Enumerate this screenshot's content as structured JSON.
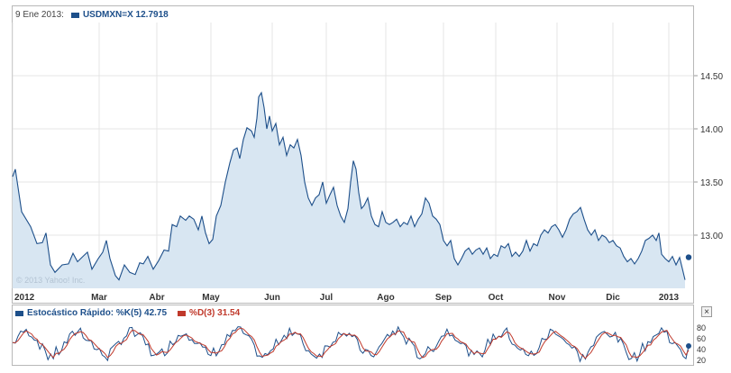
{
  "header": {
    "date_label": "9 Ene 2013:",
    "series_label": "USDMXN=X 12.7918",
    "series_color": "#1d4f8a"
  },
  "watermark": "© 2013 Yahoo! Inc.",
  "indicator": {
    "k_label": "Estocástico Rápido: %K(5) 42.75",
    "d_label": "%D(3) 31.54",
    "k_color": "#1d4f8a",
    "d_color": "#c0392b",
    "close_symbol": "×"
  },
  "chart_data": [
    {
      "type": "area",
      "series": [
        {
          "name": "USDMXN=X",
          "anchors": [
            [
              0,
              13.55
            ],
            [
              3,
              13.62
            ],
            [
              10,
              13.22
            ],
            [
              20,
              13.08
            ],
            [
              27,
              12.92
            ],
            [
              33,
              12.93
            ],
            [
              37,
              13.02
            ],
            [
              42,
              12.72
            ],
            [
              47,
              12.65
            ],
            [
              55,
              12.72
            ],
            [
              62,
              12.73
            ],
            [
              67,
              12.83
            ],
            [
              72,
              12.75
            ],
            [
              78,
              12.8
            ],
            [
              83,
              12.84
            ],
            [
              88,
              12.68
            ],
            [
              95,
              12.78
            ],
            [
              100,
              12.84
            ],
            [
              104,
              12.95
            ],
            [
              108,
              12.78
            ],
            [
              114,
              12.62
            ],
            [
              118,
              12.58
            ],
            [
              124,
              12.72
            ],
            [
              130,
              12.65
            ],
            [
              136,
              12.63
            ],
            [
              141,
              12.74
            ],
            [
              145,
              12.73
            ],
            [
              150,
              12.8
            ],
            [
              156,
              12.68
            ],
            [
              162,
              12.76
            ],
            [
              168,
              12.86
            ],
            [
              173,
              12.85
            ],
            [
              177,
              13.1
            ],
            [
              182,
              13.08
            ],
            [
              186,
              13.18
            ],
            [
              192,
              13.14
            ],
            [
              196,
              13.18
            ],
            [
              201,
              13.15
            ],
            [
              206,
              13.05
            ],
            [
              210,
              13.18
            ],
            [
              214,
              13.02
            ],
            [
              218,
              12.92
            ],
            [
              222,
              12.96
            ],
            [
              226,
              13.18
            ],
            [
              231,
              13.28
            ],
            [
              236,
              13.5
            ],
            [
              241,
              13.68
            ],
            [
              245,
              13.8
            ],
            [
              249,
              13.82
            ],
            [
              252,
              13.72
            ],
            [
              256,
              13.9
            ],
            [
              260,
              14.01
            ],
            [
              265,
              13.98
            ],
            [
              268,
              13.92
            ],
            [
              271,
              14.1
            ],
            [
              273,
              14.3
            ],
            [
              276,
              14.34
            ],
            [
              279,
              14.2
            ],
            [
              282,
              14.0
            ],
            [
              285,
              14.12
            ],
            [
              288,
              13.98
            ],
            [
              292,
              14.05
            ],
            [
              296,
              13.85
            ],
            [
              300,
              13.92
            ],
            [
              304,
              13.75
            ],
            [
              308,
              13.85
            ],
            [
              312,
              13.82
            ],
            [
              316,
              13.9
            ],
            [
              320,
              13.75
            ],
            [
              324,
              13.5
            ],
            [
              328,
              13.35
            ],
            [
              332,
              13.28
            ],
            [
              336,
              13.35
            ],
            [
              340,
              13.38
            ],
            [
              344,
              13.5
            ],
            [
              348,
              13.3
            ],
            [
              352,
              13.38
            ],
            [
              356,
              13.45
            ],
            [
              360,
              13.28
            ],
            [
              364,
              13.18
            ],
            [
              368,
              13.12
            ],
            [
              372,
              13.25
            ],
            [
              375,
              13.5
            ],
            [
              378,
              13.7
            ],
            [
              381,
              13.62
            ],
            [
              384,
              13.4
            ],
            [
              387,
              13.25
            ],
            [
              390,
              13.28
            ],
            [
              394,
              13.35
            ],
            [
              398,
              13.18
            ],
            [
              402,
              13.1
            ],
            [
              406,
              13.08
            ],
            [
              410,
              13.22
            ],
            [
              414,
              13.12
            ],
            [
              418,
              13.1
            ],
            [
              422,
              13.12
            ],
            [
              426,
              13.15
            ],
            [
              430,
              13.08
            ],
            [
              434,
              13.12
            ],
            [
              438,
              13.1
            ],
            [
              442,
              13.18
            ],
            [
              446,
              13.08
            ],
            [
              450,
              13.15
            ],
            [
              454,
              13.2
            ],
            [
              458,
              13.35
            ],
            [
              462,
              13.3
            ],
            [
              466,
              13.18
            ],
            [
              470,
              13.15
            ],
            [
              474,
              13.1
            ],
            [
              478,
              12.95
            ],
            [
              482,
              12.9
            ],
            [
              486,
              12.95
            ],
            [
              490,
              12.78
            ],
            [
              494,
              12.72
            ],
            [
              498,
              12.78
            ],
            [
              502,
              12.85
            ],
            [
              506,
              12.88
            ],
            [
              510,
              12.82
            ],
            [
              514,
              12.86
            ],
            [
              518,
              12.88
            ],
            [
              522,
              12.82
            ],
            [
              526,
              12.88
            ],
            [
              530,
              12.78
            ],
            [
              534,
              12.82
            ],
            [
              538,
              12.8
            ],
            [
              542,
              12.9
            ],
            [
              546,
              12.88
            ],
            [
              550,
              12.92
            ],
            [
              554,
              12.8
            ],
            [
              558,
              12.84
            ],
            [
              562,
              12.8
            ],
            [
              566,
              12.85
            ],
            [
              570,
              12.95
            ],
            [
              574,
              12.85
            ],
            [
              578,
              12.92
            ],
            [
              582,
              12.9
            ],
            [
              586,
              13.0
            ],
            [
              590,
              13.05
            ],
            [
              594,
              13.02
            ],
            [
              598,
              13.08
            ],
            [
              602,
              13.1
            ],
            [
              606,
              13.05
            ],
            [
              610,
              12.98
            ],
            [
              614,
              13.05
            ],
            [
              618,
              13.15
            ],
            [
              622,
              13.2
            ],
            [
              626,
              13.22
            ],
            [
              630,
              13.26
            ],
            [
              634,
              13.15
            ],
            [
              638,
              13.05
            ],
            [
              642,
              13.0
            ],
            [
              646,
              13.05
            ],
            [
              650,
              12.95
            ],
            [
              654,
              13.0
            ],
            [
              658,
              12.98
            ],
            [
              662,
              12.93
            ],
            [
              666,
              12.95
            ],
            [
              670,
              12.9
            ],
            [
              674,
              12.88
            ],
            [
              678,
              12.8
            ],
            [
              682,
              12.75
            ],
            [
              686,
              12.78
            ],
            [
              690,
              12.73
            ],
            [
              694,
              12.78
            ],
            [
              698,
              12.85
            ],
            [
              702,
              12.95
            ],
            [
              706,
              12.97
            ],
            [
              710,
              13.0
            ],
            [
              714,
              12.95
            ],
            [
              717,
              13.02
            ],
            [
              720,
              12.82
            ],
            [
              724,
              12.78
            ],
            [
              728,
              12.75
            ],
            [
              732,
              12.8
            ],
            [
              736,
              12.72
            ],
            [
              740,
              12.79
            ],
            [
              744,
              12.65
            ],
            [
              746,
              12.58
            ]
          ],
          "last_value": 12.7918
        }
      ],
      "x_ticks": [
        "2012",
        "Mar",
        "Abr",
        "May",
        "Jun",
        "Jul",
        "Ago",
        "Sep",
        "Oct",
        "Nov",
        "Dic",
        "2013"
      ],
      "x_tick_positions": [
        0,
        96,
        160,
        220,
        288,
        348,
        414,
        478,
        536,
        604,
        666,
        728
      ],
      "y_ticks": [
        13.0,
        13.5,
        14.0,
        14.5
      ],
      "y_tick_labels": [
        "13.00",
        "13.50",
        "14.00",
        "14.50"
      ],
      "ylim": [
        12.5,
        14.5
      ],
      "grid": true
    },
    {
      "type": "line",
      "series": [
        {
          "name": "%K(5)",
          "last_value": 42.75
        },
        {
          "name": "%D(3)",
          "last_value": 31.54
        }
      ],
      "y_ticks": [
        20,
        40,
        60,
        80
      ],
      "y_tick_labels": [
        "20",
        "40",
        "60",
        "80"
      ],
      "ylim": [
        0,
        100
      ]
    }
  ]
}
